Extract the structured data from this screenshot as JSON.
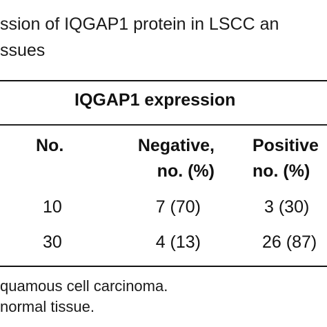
{
  "caption": {
    "line1": "ssion of IQGAP1 protein in LSCC an",
    "line2": "ssues"
  },
  "table": {
    "group_header": "IQGAP1 expression",
    "columns": {
      "no": "No.",
      "negative_line1": "Negative,",
      "negative_line2": "no. (%)",
      "positive_line1": "Positive",
      "positive_line2": "no. (%)"
    },
    "rows": [
      {
        "no": "10",
        "negative": "7 (70)",
        "positive": "3 (30)"
      },
      {
        "no": "30",
        "negative": "4 (13)",
        "positive": "26 (87)"
      }
    ]
  },
  "footnotes": {
    "line1": "quamous cell carcinoma.",
    "line2": "normal tissue."
  }
}
